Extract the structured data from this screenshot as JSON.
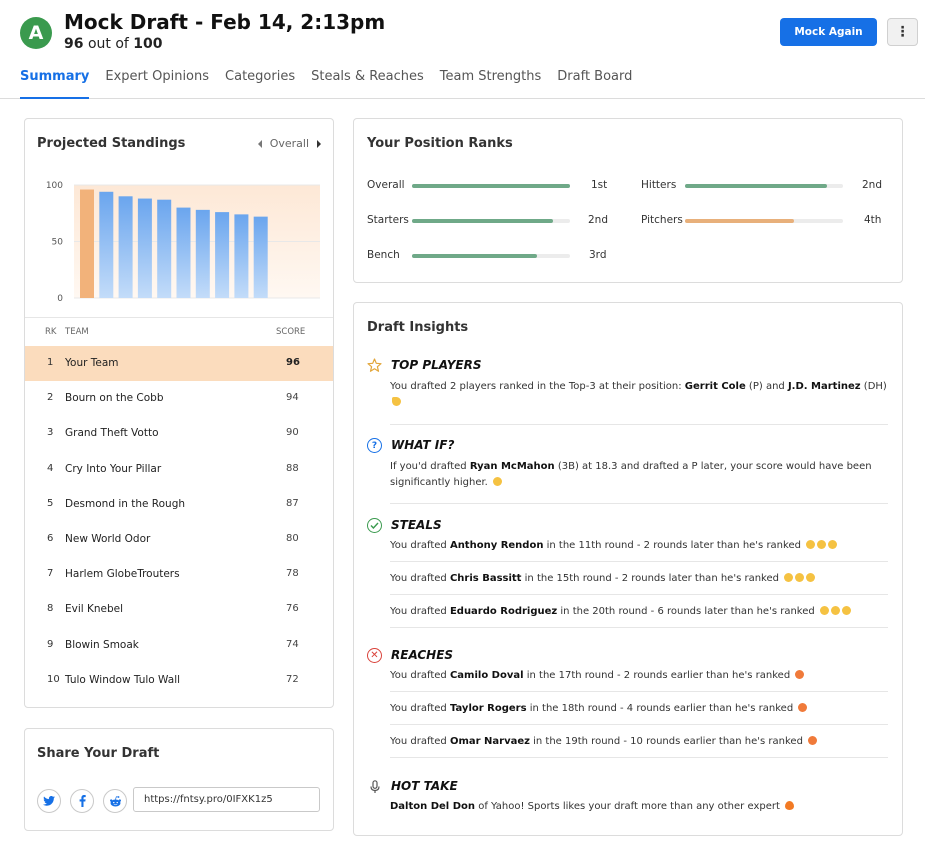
{
  "header": {
    "grade": "A",
    "title": "Mock Draft - Feb 14, 2:13pm",
    "score_value": "96",
    "score_mid": "out of",
    "score_max": "100",
    "mock_again_label": "Mock Again",
    "more_label": "⋮"
  },
  "tabs": [
    "Summary",
    "Expert Opinions",
    "Categories",
    "Steals & Reaches",
    "Team Strengths",
    "Draft Board"
  ],
  "colors": {
    "accent": "#1670e6",
    "grade_green": "#3a9a4e",
    "highlight_row": "#fbdcbd",
    "bar_green": "#6fa988",
    "bar_orange": "#e8b07b",
    "chart_blue": "#7fb2f0",
    "chart_orange": "#f2b27a"
  },
  "standings": {
    "title": "Projected Standings",
    "filter_label": "Overall",
    "columns": {
      "rank": "RK",
      "team": "TEAM",
      "score": "SCORE"
    },
    "rows": [
      {
        "rk": "1",
        "team": "Your Team",
        "score": "96",
        "me": true
      },
      {
        "rk": "2",
        "team": "Bourn on the Cobb",
        "score": "94"
      },
      {
        "rk": "3",
        "team": "Grand Theft Votto",
        "score": "90"
      },
      {
        "rk": "4",
        "team": "Cry Into Your Pillar",
        "score": "88"
      },
      {
        "rk": "5",
        "team": "Desmond in the Rough",
        "score": "87"
      },
      {
        "rk": "6",
        "team": "New World Odor",
        "score": "80"
      },
      {
        "rk": "7",
        "team": "Harlem GlobeTrouters",
        "score": "78"
      },
      {
        "rk": "8",
        "team": "Evil Knebel",
        "score": "76"
      },
      {
        "rk": "9",
        "team": "Blowin Smoak",
        "score": "74"
      },
      {
        "rk": "10",
        "team": "Tulo Window Tulo Wall",
        "score": "72"
      }
    ]
  },
  "chart_data": {
    "type": "bar",
    "categories": [
      "Your Team",
      "Bourn on the Cobb",
      "Grand Theft Votto",
      "Cry Into Your Pillar",
      "Desmond in the Rough",
      "New World Odor",
      "Harlem GlobeTrouters",
      "Evil Knebel",
      "Blowin Smoak",
      "Tulo Window Tulo Wall"
    ],
    "values": [
      96,
      94,
      90,
      88,
      87,
      80,
      78,
      76,
      74,
      72
    ],
    "yticks": [
      "0",
      "50",
      "100"
    ],
    "ylim": [
      0,
      100
    ],
    "highlight_index": 0
  },
  "share": {
    "title": "Share Your Draft",
    "icons": [
      "twitter-icon",
      "facebook-icon",
      "reddit-icon"
    ],
    "url": "https://fntsy.pro/0IFXK1z5"
  },
  "position_ranks": {
    "title": "Your Position Ranks",
    "items": [
      {
        "label": "Overall",
        "rank": "1st",
        "fill": 1.0,
        "color": "green"
      },
      {
        "label": "Hitters",
        "rank": "2nd",
        "fill": 0.9,
        "color": "green"
      },
      {
        "label": "Starters",
        "rank": "2nd",
        "fill": 0.89,
        "color": "green"
      },
      {
        "label": "Pitchers",
        "rank": "4th",
        "fill": 0.69,
        "color": "orange"
      },
      {
        "label": "Bench",
        "rank": "3rd",
        "fill": 0.79,
        "color": "green"
      }
    ]
  },
  "insights": {
    "title": "Draft Insights",
    "top_players": {
      "title": "TOP PLAYERS",
      "pre": "You drafted 2 players ranked in the Top-3 at their position: ",
      "p1": "Gerrit Cole",
      "p1_pos": " (P) and ",
      "p2": "J.D. Martinez",
      "p2_pos": " (DH)"
    },
    "what_if": {
      "title": "WHAT IF?",
      "pre": "If you'd drafted ",
      "player": "Ryan McMahon",
      "post": " (3B) at 18.3 and drafted a P later, your score would have been significantly higher."
    },
    "steals": {
      "title": "STEALS",
      "items": [
        {
          "pre": "You drafted ",
          "player": "Anthony Rendon",
          "post": " in the 11th round - 2 rounds later than he's ranked"
        },
        {
          "pre": "You drafted ",
          "player": "Chris Bassitt",
          "post": " in the 15th round - 2 rounds later than he's ranked"
        },
        {
          "pre": "You drafted ",
          "player": "Eduardo Rodriguez",
          "post": " in the 20th round - 6 rounds later than he's ranked"
        }
      ]
    },
    "reaches": {
      "title": "REACHES",
      "items": [
        {
          "pre": "You drafted ",
          "player": "Camilo Doval",
          "post": " in the 17th round - 2 rounds earlier than he's ranked"
        },
        {
          "pre": "You drafted ",
          "player": "Taylor Rogers",
          "post": " in the 18th round - 4 rounds earlier than he's ranked"
        },
        {
          "pre": "You drafted ",
          "player": "Omar Narvaez",
          "post": " in the 19th round - 10 rounds earlier than he's ranked"
        }
      ]
    },
    "hot_take": {
      "title": "HOT TAKE",
      "expert": "Dalton Del Don",
      "post": " of Yahoo! Sports likes your draft more than any other expert"
    }
  }
}
